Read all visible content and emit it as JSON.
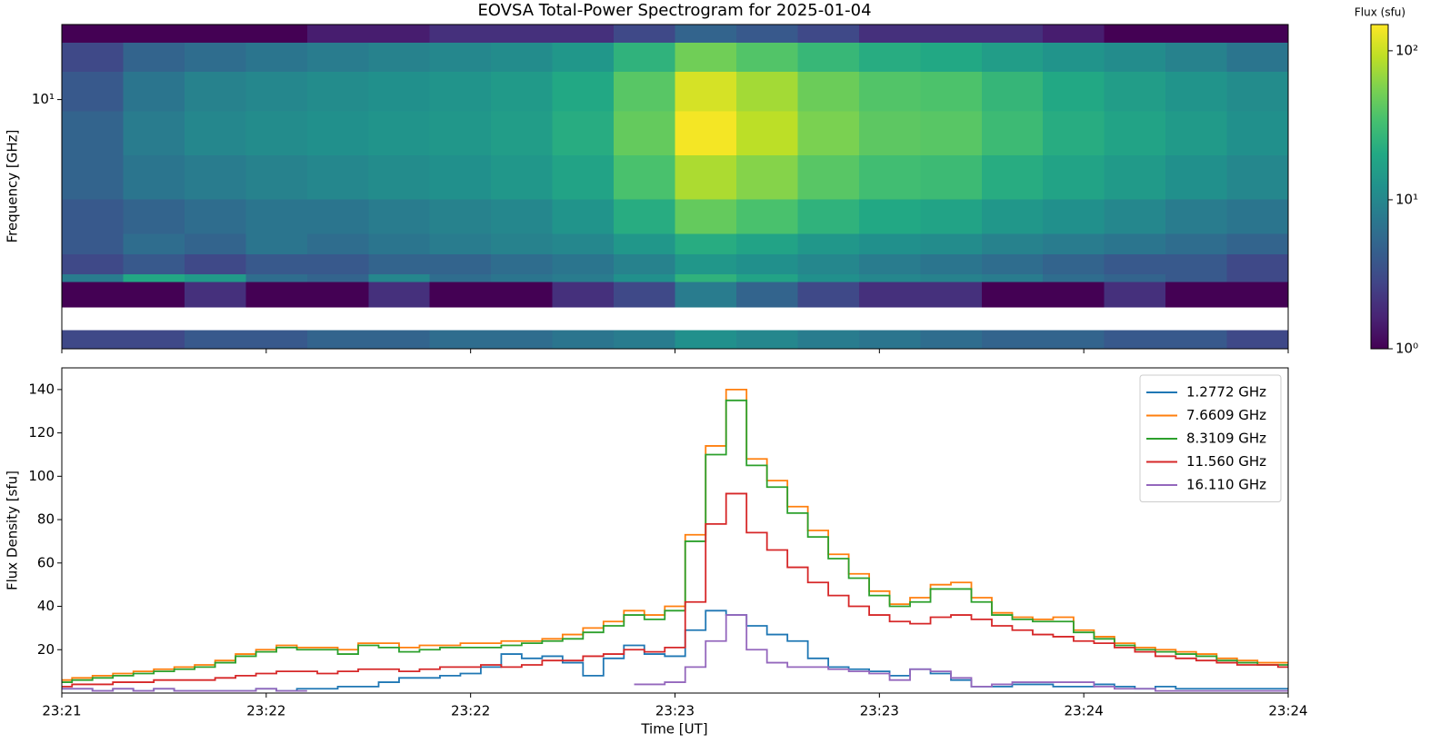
{
  "chart_data": [
    {
      "type": "heatmap",
      "title": "EOVSA Total-Power Spectrogram for 2025-01-04",
      "ylabel": "Frequency [GHz]",
      "x": [
        1401,
        1401.15,
        1401.3,
        1401.45,
        1401.6,
        1401.75,
        1401.9,
        1402.05,
        1402.2,
        1402.35,
        1402.5,
        1402.65,
        1402.8,
        1402.95,
        1403.1,
        1403.25,
        1403.4,
        1403.55,
        1403.7,
        1403.85,
        1404
      ],
      "y": [
        1.0,
        1.19,
        1.47,
        1.86,
        2.0,
        2.4,
        2.9,
        4,
        6,
        9,
        13,
        17,
        20
      ],
      "values": [
        [
          3,
          3,
          4,
          4,
          5,
          5,
          6,
          6,
          7,
          8,
          12,
          10,
          8,
          7,
          6,
          5,
          5,
          4,
          4,
          3
        ],
        [
          null,
          null,
          null,
          null,
          null,
          null,
          null,
          null,
          null,
          null,
          null,
          null,
          null,
          null,
          null,
          null,
          null,
          null,
          null,
          null
        ],
        [
          1,
          1,
          2,
          1,
          1,
          2,
          1,
          1,
          2,
          3,
          8,
          5,
          3,
          2,
          2,
          1,
          1,
          2,
          1,
          1
        ],
        [
          8,
          20,
          15,
          6,
          5,
          10,
          6,
          7,
          8,
          12,
          25,
          18,
          12,
          10,
          9,
          8,
          6,
          5,
          4,
          3
        ],
        [
          3,
          4,
          3,
          4,
          4,
          5,
          5,
          6,
          7,
          9,
          14,
          12,
          10,
          8,
          7,
          6,
          5,
          4,
          4,
          3
        ],
        [
          4,
          6,
          5,
          7,
          6,
          7,
          8,
          9,
          10,
          14,
          22,
          18,
          14,
          12,
          11,
          9,
          8,
          7,
          6,
          5
        ],
        [
          4,
          5,
          6,
          7,
          7,
          8,
          9,
          10,
          13,
          22,
          45,
          35,
          25,
          20,
          18,
          14,
          12,
          10,
          8,
          7
        ],
        [
          5,
          7,
          8,
          9,
          10,
          11,
          12,
          14,
          18,
          35,
          80,
          60,
          40,
          32,
          30,
          22,
          18,
          15,
          12,
          10
        ],
        [
          5,
          8,
          10,
          11,
          12,
          13,
          14,
          16,
          22,
          45,
          140,
          90,
          55,
          42,
          40,
          30,
          22,
          18,
          15,
          12
        ],
        [
          4,
          7,
          9,
          10,
          11,
          12,
          13,
          15,
          20,
          40,
          110,
          75,
          48,
          38,
          36,
          27,
          20,
          16,
          13,
          11
        ],
        [
          3,
          5,
          6,
          7,
          8,
          9,
          10,
          11,
          14,
          25,
          50,
          38,
          28,
          22,
          20,
          16,
          13,
          11,
          9,
          7
        ],
        [
          1,
          1,
          1,
          1,
          1.5,
          1.5,
          2,
          2,
          2,
          3,
          5,
          4,
          3,
          2,
          2,
          2,
          1.5,
          1,
          1,
          1
        ]
      ],
      "xlim": [
        1401,
        1404
      ],
      "xticks": [
        1401,
        1401.5,
        1402,
        1402.5,
        1403,
        1403.5,
        1404
      ],
      "ylim": [
        1,
        20
      ],
      "yscale": "log",
      "yticks": [
        {
          "value": 10,
          "label": "10¹"
        }
      ],
      "colormap": "viridis",
      "colorbar": {
        "label": "Flux (sfu)",
        "lim": [
          1,
          150
        ],
        "scale": "log",
        "ticks": [
          {
            "value": 1,
            "label": "10⁰"
          },
          {
            "value": 10,
            "label": "10¹"
          },
          {
            "value": 100,
            "label": "10²"
          }
        ]
      }
    },
    {
      "type": "step",
      "xlabel": "Time [UT]",
      "ylabel": "Flux Density [sfu]",
      "x": [
        1401,
        1401.05,
        1401.1,
        1401.15,
        1401.2,
        1401.25,
        1401.3,
        1401.35,
        1401.4,
        1401.45,
        1401.5,
        1401.55,
        1401.6,
        1401.65,
        1401.7,
        1401.75,
        1401.8,
        1401.85,
        1401.9,
        1401.95,
        1402,
        1402.05,
        1402.1,
        1402.15,
        1402.2,
        1402.25,
        1402.3,
        1402.35,
        1402.4,
        1402.45,
        1402.5,
        1402.55,
        1402.6,
        1402.65,
        1402.7,
        1402.75,
        1402.8,
        1402.85,
        1402.9,
        1402.95,
        1403,
        1403.05,
        1403.1,
        1403.15,
        1403.2,
        1403.25,
        1403.3,
        1403.35,
        1403.4,
        1403.45,
        1403.5,
        1403.55,
        1403.6,
        1403.65,
        1403.7,
        1403.75,
        1403.8,
        1403.85,
        1403.9,
        1403.95,
        1404
      ],
      "series": [
        {
          "name": "1.2772 GHz",
          "color": "#1f77b4",
          "values": [
            2,
            2,
            1,
            2,
            1,
            2,
            1,
            1,
            1,
            1,
            2,
            1,
            2,
            2,
            3,
            3,
            5,
            7,
            7,
            8,
            9,
            12,
            18,
            16,
            17,
            14,
            8,
            16,
            22,
            18,
            17,
            29,
            38,
            36,
            31,
            27,
            24,
            16,
            12,
            11,
            10,
            8,
            11,
            9,
            6,
            3,
            3,
            4,
            4,
            3,
            3,
            4,
            3,
            2,
            3,
            2,
            2,
            2,
            2,
            2,
            2
          ]
        },
        {
          "name": "7.6609 GHz",
          "color": "#ff7f0e",
          "values": [
            6,
            7,
            8,
            9,
            10,
            11,
            12,
            13,
            15,
            18,
            20,
            22,
            21,
            21,
            20,
            23,
            23,
            21,
            22,
            22,
            23,
            23,
            24,
            24,
            25,
            27,
            30,
            33,
            38,
            36,
            40,
            73,
            114,
            140,
            108,
            98,
            86,
            75,
            64,
            55,
            47,
            41,
            44,
            50,
            51,
            44,
            37,
            35,
            34,
            35,
            29,
            26,
            23,
            21,
            20,
            19,
            18,
            16,
            15,
            14,
            14
          ]
        },
        {
          "name": "8.3109 GHz",
          "color": "#2ca02c",
          "values": [
            5,
            6,
            7,
            8,
            9,
            10,
            11,
            12,
            14,
            17,
            19,
            21,
            20,
            20,
            18,
            22,
            21,
            19,
            20,
            21,
            21,
            21,
            22,
            23,
            24,
            25,
            28,
            31,
            36,
            34,
            38,
            70,
            110,
            135,
            105,
            95,
            83,
            72,
            62,
            53,
            45,
            40,
            42,
            48,
            48,
            42,
            36,
            34,
            33,
            33,
            28,
            25,
            22,
            20,
            19,
            18,
            17,
            15,
            14,
            13,
            13
          ]
        },
        {
          "name": "11.560 GHz",
          "color": "#d62728",
          "values": [
            3,
            4,
            4,
            5,
            5,
            6,
            6,
            6,
            7,
            8,
            9,
            10,
            10,
            9,
            10,
            11,
            11,
            10,
            11,
            12,
            12,
            13,
            12,
            13,
            15,
            15,
            17,
            18,
            20,
            19,
            21,
            42,
            78,
            92,
            74,
            66,
            58,
            51,
            45,
            40,
            36,
            33,
            32,
            35,
            36,
            34,
            31,
            29,
            27,
            26,
            24,
            23,
            21,
            19,
            17,
            16,
            15,
            14,
            13,
            13,
            12
          ]
        },
        {
          "name": "16.110 GHz",
          "color": "#9467bd",
          "values": [
            2,
            2,
            1,
            2,
            1,
            2,
            1,
            1,
            1,
            1,
            2,
            1,
            1,
            null,
            null,
            null,
            null,
            null,
            null,
            null,
            null,
            null,
            null,
            null,
            null,
            null,
            null,
            null,
            4,
            4,
            5,
            12,
            24,
            36,
            20,
            14,
            12,
            12,
            11,
            10,
            9,
            6,
            11,
            10,
            7,
            3,
            4,
            5,
            5,
            5,
            5,
            3,
            2,
            2,
            1,
            1,
            1,
            1,
            1,
            1,
            1
          ]
        }
      ],
      "xlim": [
        1401,
        1404
      ],
      "xticks": [
        {
          "value": 1401,
          "label": "23:21"
        },
        {
          "value": 1401.5,
          "label": "23:22"
        },
        {
          "value": 1402,
          "label": "23:22"
        },
        {
          "value": 1402.5,
          "label": "23:23"
        },
        {
          "value": 1403,
          "label": "23:23"
        },
        {
          "value": 1403.5,
          "label": "23:24"
        },
        {
          "value": 1404,
          "label": "23:24"
        }
      ],
      "ylim": [
        0,
        150
      ],
      "yticks": [
        20,
        40,
        60,
        80,
        100,
        120,
        140
      ],
      "legend": "upper right"
    }
  ]
}
